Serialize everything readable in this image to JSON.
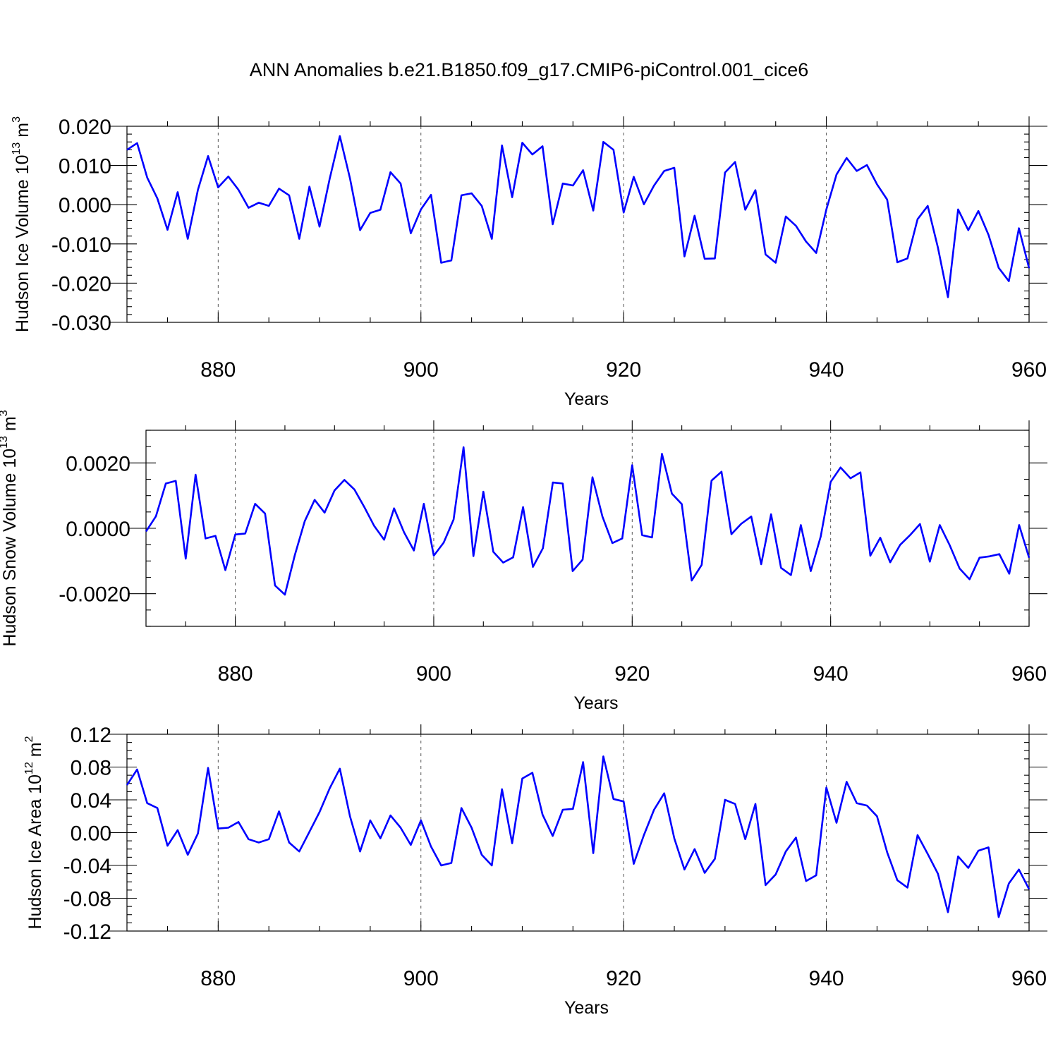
{
  "figure": {
    "title": "ANN Anomalies b.e21.B1850.f09_g17.CMIP6-piControl.001_cice6"
  },
  "chart_data": [
    {
      "type": "line",
      "ylabel_main": "Hudson Ice Volume 10",
      "ylabel_exp": "13",
      "ylabel_unit": " m",
      "ylabel_unit_exp": "3",
      "xlabel": "Years",
      "xlim": [
        871,
        960
      ],
      "ylim": [
        -0.03,
        0.02
      ],
      "xticks": [
        880,
        900,
        920,
        940,
        960
      ],
      "yticks": [
        -0.03,
        -0.02,
        -0.01,
        0.0,
        0.01,
        0.02
      ],
      "ytick_labels": [
        "-0.030",
        "-0.020",
        "-0.010",
        "0.000",
        "0.010",
        "0.020"
      ],
      "x_minor_step": 5,
      "y_minor_step": 0.002,
      "grid": "dashed vertical at major x ticks",
      "line_color": "#0000ff",
      "series": [
        {
          "x": [
            871,
            872,
            873,
            874,
            875,
            876,
            877,
            878,
            879,
            880,
            881,
            882,
            883,
            884,
            885,
            886,
            887,
            888,
            889,
            890,
            891,
            892,
            893,
            894,
            895,
            896,
            897,
            898,
            899,
            900,
            901,
            902,
            903,
            904,
            905,
            906,
            907,
            908,
            909,
            910,
            911,
            912,
            913,
            914,
            915,
            916,
            917,
            918,
            919,
            920,
            921,
            922,
            923,
            924,
            925,
            926,
            927,
            928,
            929,
            930,
            931,
            932,
            933,
            934,
            935,
            936,
            937,
            938,
            939,
            940,
            941,
            942,
            943,
            944,
            945,
            946,
            947,
            948,
            949,
            950,
            951,
            952,
            953,
            954,
            955,
            956,
            957,
            958,
            959,
            960
          ],
          "y": [
            0.014,
            0.0157,
            0.0069,
            0.0016,
            -0.0064,
            0.0032,
            -0.0087,
            0.0038,
            0.0124,
            0.0044,
            0.0072,
            0.0038,
            -0.0008,
            0.0005,
            -0.0003,
            0.0041,
            0.0024,
            -0.0087,
            0.0046,
            -0.0056,
            0.0066,
            0.0175,
            0.0067,
            -0.0065,
            -0.0021,
            -0.0013,
            0.0083,
            0.0054,
            -0.0073,
            -0.0012,
            0.0025,
            -0.0148,
            -0.0142,
            0.0024,
            0.0029,
            -0.0003,
            -0.0087,
            0.0151,
            0.0019,
            0.0158,
            0.0128,
            0.0149,
            -0.005,
            0.0054,
            0.0049,
            0.0088,
            -0.0015,
            0.016,
            0.014,
            -0.002,
            0.0071,
            0.0001,
            0.0049,
            0.0086,
            0.0094,
            -0.0132,
            -0.0028,
            -0.0138,
            -0.0137,
            0.0082,
            0.0109,
            -0.0013,
            0.0037,
            -0.0127,
            -0.0148,
            -0.003,
            -0.0054,
            -0.0094,
            -0.0123,
            -0.0012,
            0.0077,
            0.0119,
            0.0086,
            0.0101,
            0.0052,
            0.0013,
            -0.0147,
            -0.0137,
            -0.0037,
            -0.0003,
            -0.0109,
            -0.0236,
            -0.0012,
            -0.0065,
            -0.0016,
            -0.0077,
            -0.0161,
            -0.0195,
            -0.006,
            -0.0162
          ]
        }
      ]
    },
    {
      "type": "line",
      "ylabel_main": "Hudson Snow Volume 10",
      "ylabel_exp": "13",
      "ylabel_unit": " m",
      "ylabel_unit_exp": "3",
      "xlabel": "Years",
      "xlim": [
        871,
        960
      ],
      "ylim": [
        -0.003,
        0.003
      ],
      "xticks": [
        880,
        900,
        920,
        940,
        960
      ],
      "yticks": [
        -0.002,
        0.0,
        0.002
      ],
      "ytick_labels": [
        "-0.0020",
        "0.0000",
        "0.0020"
      ],
      "y_minor_ticks": [
        -0.003,
        -0.0025,
        -0.0015,
        -0.001,
        -0.0005,
        0.0005,
        0.001,
        0.0015,
        0.0025,
        0.003
      ],
      "x_minor_step": 5,
      "grid": "dashed vertical at major x ticks",
      "line_color": "#0000ff",
      "series": [
        {
          "x": [
            871,
            872,
            873,
            874,
            875,
            876,
            877,
            878,
            879,
            880,
            881,
            882,
            883,
            884,
            885,
            886,
            887,
            888,
            889,
            890,
            891,
            892,
            893,
            894,
            895,
            896,
            897,
            898,
            899,
            900,
            901,
            902,
            903,
            904,
            905,
            906,
            907,
            908,
            909,
            910,
            911,
            912,
            913,
            914,
            915,
            916,
            917,
            918,
            919,
            920,
            921,
            922,
            923,
            924,
            925,
            926,
            927,
            928,
            929,
            930,
            931,
            932,
            933,
            934,
            935,
            936,
            937,
            938,
            939,
            940,
            941,
            942,
            943,
            944,
            945,
            946,
            947,
            948,
            949,
            950,
            951,
            952,
            953,
            954,
            955,
            956,
            957,
            958,
            959,
            960
          ],
          "y": [
            -0.0001,
            0.00037,
            0.00137,
            0.00145,
            -0.00093,
            0.00164,
            -0.00031,
            -0.00023,
            -0.00128,
            -0.00019,
            -0.00016,
            0.00075,
            0.00045,
            -0.00175,
            -0.00203,
            -0.00082,
            0.00022,
            0.00087,
            0.00048,
            0.00116,
            0.00148,
            0.00119,
            0.00065,
            7e-05,
            -0.00035,
            0.00061,
            -0.00012,
            -0.00068,
            0.00075,
            -0.00084,
            -0.00044,
            0.00027,
            0.00248,
            -0.00085,
            0.00112,
            -0.00072,
            -0.00105,
            -0.00089,
            0.00065,
            -0.00118,
            -0.00061,
            0.0014,
            0.00137,
            -0.00131,
            -0.00096,
            0.00156,
            0.00036,
            -0.00045,
            -0.00031,
            0.00193,
            -0.00021,
            -0.00028,
            0.00228,
            0.00106,
            0.00074,
            -0.0016,
            -0.00112,
            0.00146,
            0.00173,
            -0.00018,
            0.00014,
            0.00036,
            -0.0011,
            0.00043,
            -0.00121,
            -0.00143,
            0.0001,
            -0.00131,
            -0.00025,
            0.00142,
            0.00186,
            0.00153,
            0.00171,
            -0.00084,
            -0.00029,
            -0.00104,
            -0.00051,
            -0.00021,
            0.00013,
            -0.00102,
            0.0001,
            -0.00052,
            -0.00123,
            -0.00156,
            -0.0009,
            -0.00086,
            -0.00079,
            -0.00139,
            0.0001,
            -0.0009
          ]
        }
      ]
    },
    {
      "type": "line",
      "ylabel_main": "Hudson Ice Area 10",
      "ylabel_exp": "12",
      "ylabel_unit": " m",
      "ylabel_unit_exp": "2",
      "xlabel": "Years",
      "xlim": [
        871,
        960
      ],
      "ylim": [
        -0.12,
        0.12
      ],
      "xticks": [
        880,
        900,
        920,
        940,
        960
      ],
      "yticks": [
        -0.12,
        -0.08,
        -0.04,
        0.0,
        0.04,
        0.08,
        0.12
      ],
      "ytick_labels": [
        "-0.12",
        "-0.08",
        "-0.04",
        "0.00",
        "0.04",
        "0.08",
        "0.12"
      ],
      "x_minor_step": 5,
      "y_minor_step": 0.01,
      "grid": "dashed vertical at major x ticks",
      "line_color": "#0000ff",
      "series": [
        {
          "x": [
            871,
            872,
            873,
            874,
            875,
            876,
            877,
            878,
            879,
            880,
            881,
            882,
            883,
            884,
            885,
            886,
            887,
            888,
            889,
            890,
            891,
            892,
            893,
            894,
            895,
            896,
            897,
            898,
            899,
            900,
            901,
            902,
            903,
            904,
            905,
            906,
            907,
            908,
            909,
            910,
            911,
            912,
            913,
            914,
            915,
            916,
            917,
            918,
            919,
            920,
            921,
            922,
            923,
            924,
            925,
            926,
            927,
            928,
            929,
            930,
            931,
            932,
            933,
            934,
            935,
            936,
            937,
            938,
            939,
            940,
            941,
            942,
            943,
            944,
            945,
            946,
            947,
            948,
            949,
            950,
            951,
            952,
            953,
            954,
            955,
            956,
            957,
            958,
            959,
            960
          ],
          "y": [
            0.058,
            0.077,
            0.036,
            0.03,
            -0.016,
            0.003,
            -0.027,
            -0.001,
            0.079,
            0.005,
            0.006,
            0.013,
            -0.008,
            -0.012,
            -0.008,
            0.026,
            -0.012,
            -0.023,
            0.001,
            0.025,
            0.054,
            0.078,
            0.02,
            -0.023,
            0.015,
            -0.007,
            0.021,
            0.006,
            -0.015,
            0.015,
            -0.017,
            -0.04,
            -0.037,
            0.03,
            0.006,
            -0.027,
            -0.04,
            0.053,
            -0.013,
            0.066,
            0.073,
            0.022,
            -0.004,
            0.028,
            0.029,
            0.086,
            -0.025,
            0.093,
            0.041,
            0.038,
            -0.038,
            -0.003,
            0.028,
            0.048,
            -0.007,
            -0.045,
            -0.02,
            -0.049,
            -0.032,
            0.04,
            0.035,
            -0.008,
            0.035,
            -0.064,
            -0.051,
            -0.023,
            -0.006,
            -0.059,
            -0.052,
            0.055,
            0.012,
            0.062,
            0.036,
            0.033,
            0.02,
            -0.024,
            -0.058,
            -0.067,
            -0.003,
            -0.026,
            -0.05,
            -0.097,
            -0.029,
            -0.043,
            -0.022,
            -0.018,
            -0.103,
            -0.062,
            -0.045,
            -0.069
          ]
        }
      ]
    }
  ]
}
